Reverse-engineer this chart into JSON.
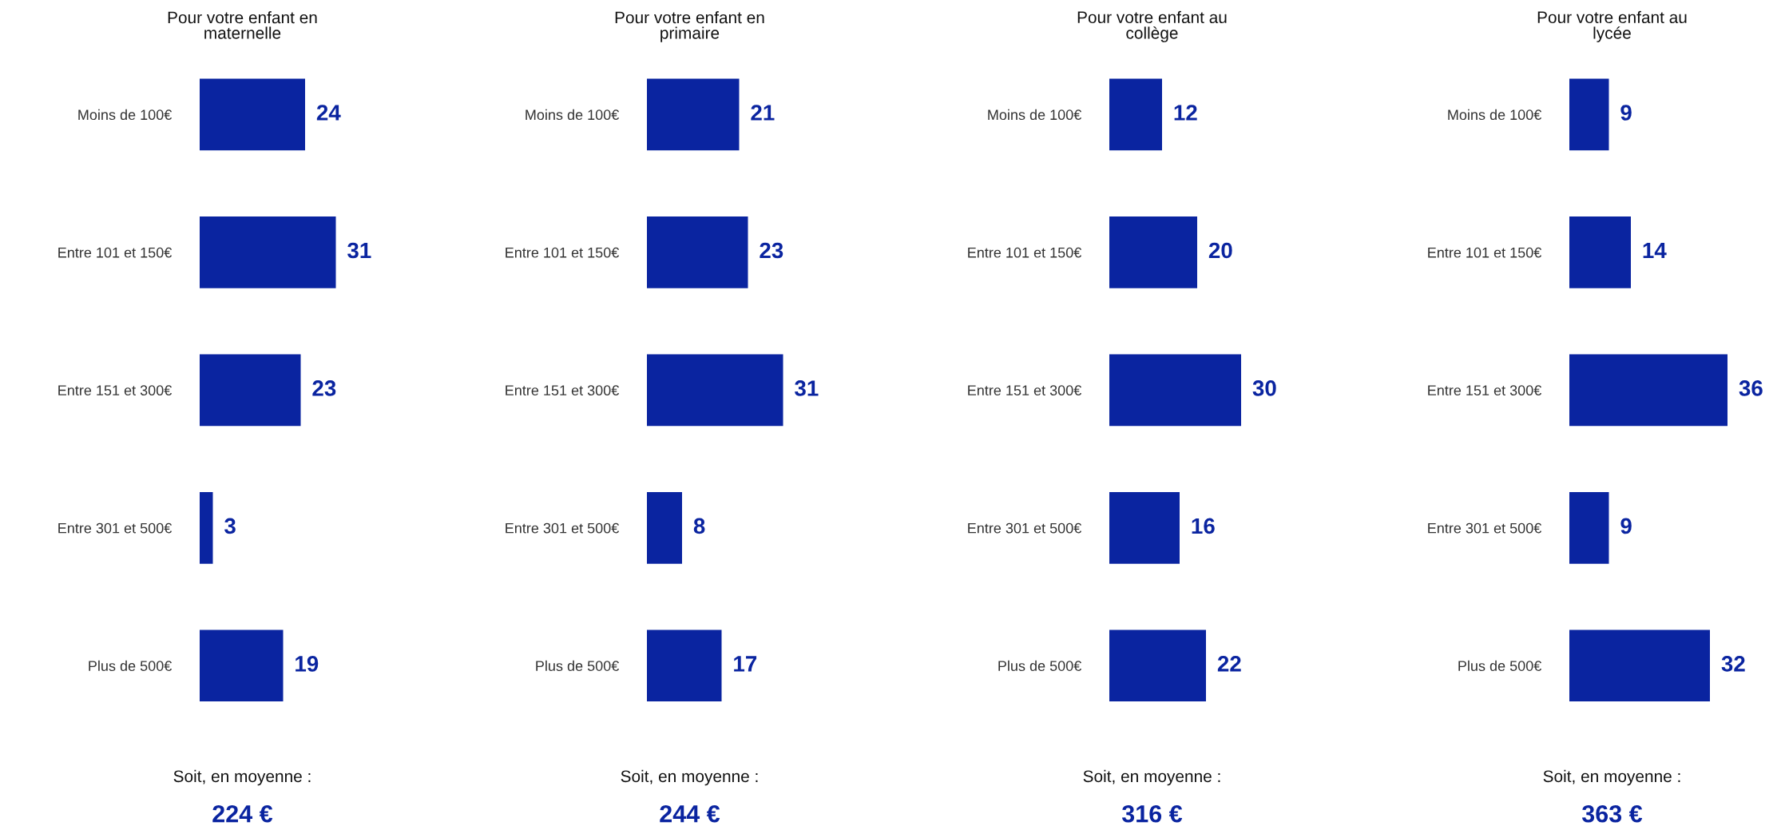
{
  "chart_data": [
    {
      "type": "bar",
      "orientation": "horizontal",
      "title": "Pour votre enfant en\nmaternelle",
      "categories": [
        "Moins de 100€",
        "Entre 101 et 150€",
        "Entre 151 et 300€",
        "Entre 301 et 500€",
        "Plus de 500€"
      ],
      "values": [
        24,
        31,
        23,
        3,
        19
      ],
      "color": "#0a24a0",
      "data_labels": true,
      "annotations": [
        "Soit, en moyenne :",
        "224 €"
      ]
    },
    {
      "type": "bar",
      "orientation": "horizontal",
      "title": "Pour votre enfant en\nprimaire",
      "categories": [
        "Moins de 100€",
        "Entre 101 et 150€",
        "Entre 151 et 300€",
        "Entre 301 et 500€",
        "Plus de 500€"
      ],
      "values": [
        21,
        23,
        31,
        8,
        17
      ],
      "color": "#0a24a0",
      "data_labels": true,
      "annotations": [
        "Soit, en moyenne :",
        "244 €"
      ]
    },
    {
      "type": "bar",
      "orientation": "horizontal",
      "title": "Pour votre enfant au\ncollège",
      "categories": [
        "Moins de 100€",
        "Entre 101 et 150€",
        "Entre 151 et 300€",
        "Entre 301 et 500€",
        "Plus de 500€"
      ],
      "values": [
        12,
        20,
        30,
        16,
        22
      ],
      "color": "#0a24a0",
      "data_labels": true,
      "annotations": [
        "Soit, en moyenne :",
        "316 €"
      ]
    },
    {
      "type": "bar",
      "orientation": "horizontal",
      "title": "Pour votre enfant au\nlycée",
      "categories": [
        "Moins de 100€",
        "Entre 101 et 150€",
        "Entre 151 et 300€",
        "Entre 301 et 500€",
        "Plus de 500€"
      ],
      "values": [
        9,
        14,
        36,
        9,
        32
      ],
      "color": "#0a24a0",
      "data_labels": true,
      "annotations": [
        "Soit, en moyenne :",
        "363 €"
      ]
    }
  ]
}
